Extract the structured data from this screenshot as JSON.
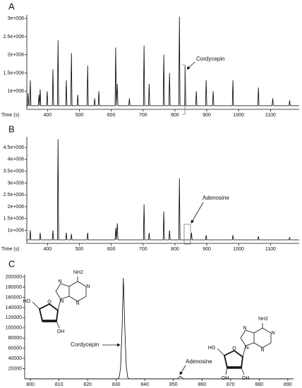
{
  "chart_data": [
    {
      "type": "line",
      "panel_label": "A",
      "xlabel": "Time (s)",
      "annotations": [
        "Cordycepin"
      ],
      "color": "#000000",
      "x": [
        335,
        337,
        339,
        341,
        344,
        346,
        348,
        371,
        373,
        375,
        377,
        379,
        397,
        399,
        401,
        415,
        417,
        419,
        431,
        433,
        435,
        457,
        459,
        461,
        473,
        475,
        477,
        493,
        495,
        497,
        524,
        526,
        528,
        546,
        548,
        550,
        559,
        561,
        563,
        612,
        614,
        616,
        619,
        621,
        655,
        657,
        659,
        701,
        703,
        705,
        717,
        719,
        721,
        763,
        765,
        767,
        781,
        783,
        785,
        812,
        814,
        816,
        830,
        832,
        834,
        865,
        867,
        869,
        896,
        898,
        900,
        918,
        920,
        922,
        980,
        982,
        984,
        1060,
        1062,
        1064,
        1105,
        1107,
        1109,
        1158,
        1160,
        1162,
        1190
      ],
      "values": [
        600000,
        600000,
        950000,
        600000,
        600000,
        1300000,
        600000,
        600000,
        900000,
        600000,
        1050000,
        600000,
        600000,
        1000000,
        600000,
        600000,
        1600000,
        600000,
        600000,
        2400000,
        600000,
        600000,
        1300000,
        600000,
        600000,
        2050000,
        600000,
        600000,
        900000,
        600000,
        600000,
        1700000,
        600000,
        600000,
        800000,
        600000,
        600000,
        1000000,
        600000,
        600000,
        2200000,
        600000,
        1200000,
        600000,
        600000,
        800000,
        600000,
        600000,
        2250000,
        600000,
        600000,
        1200000,
        600000,
        600000,
        2000000,
        600000,
        600000,
        1500000,
        600000,
        600000,
        3050000,
        600000,
        600000,
        1700000,
        600000,
        600000,
        1000000,
        600000,
        600000,
        1300000,
        600000,
        600000,
        1000000,
        600000,
        600000,
        1300000,
        600000,
        600000,
        1100000,
        600000,
        600000,
        800000,
        600000,
        600000,
        750000,
        600000,
        600000
      ],
      "xlim": [
        335,
        1190
      ],
      "xticks": [
        400,
        500,
        600,
        700,
        800,
        900,
        1000,
        1100
      ],
      "ylim": [
        500000,
        3100000
      ],
      "yticks": [
        {
          "value": 1000000,
          "label": "1e+006"
        },
        {
          "value": 1500000,
          "label": "1.5e+006"
        },
        {
          "value": 2000000,
          "label": "2e+006"
        },
        {
          "value": 2500000,
          "label": "2.5e+006"
        },
        {
          "value": 3000000,
          "label": "3e+006"
        }
      ]
    },
    {
      "type": "line",
      "panel_label": "B",
      "xlabel": "Time (s)",
      "annotations": [
        "Adenosine"
      ],
      "color": "#000000",
      "x": [
        335,
        344,
        346,
        348,
        375,
        377,
        379,
        415,
        417,
        419,
        431,
        433,
        435,
        457,
        459,
        461,
        473,
        475,
        477,
        524,
        526,
        528,
        612,
        614,
        616,
        619,
        621,
        701,
        703,
        705,
        717,
        719,
        721,
        763,
        765,
        767,
        781,
        783,
        785,
        812,
        814,
        816,
        850,
        852,
        854,
        896,
        898,
        900,
        980,
        982,
        984,
        1060,
        1062,
        1064,
        1158,
        1160,
        1162,
        1190
      ],
      "values": [
        600000,
        600000,
        1000000,
        600000,
        600000,
        900000,
        600000,
        600000,
        1000000,
        600000,
        600000,
        4850000,
        600000,
        600000,
        900000,
        600000,
        600000,
        850000,
        600000,
        600000,
        900000,
        600000,
        600000,
        1100000,
        600000,
        1300000,
        600000,
        600000,
        2100000,
        600000,
        600000,
        900000,
        600000,
        600000,
        1800000,
        600000,
        600000,
        1000000,
        600000,
        600000,
        3200000,
        600000,
        600000,
        900000,
        600000,
        600000,
        800000,
        600000,
        600000,
        800000,
        600000,
        600000,
        750000,
        600000,
        600000,
        700000,
        600000,
        600000
      ],
      "xlim": [
        335,
        1190
      ],
      "xticks": [
        400,
        500,
        600,
        700,
        800,
        900,
        1000,
        1100
      ],
      "ylim": [
        450000,
        4950000
      ],
      "yticks": [
        {
          "value": 1000000,
          "label": "1e+006"
        },
        {
          "value": 1500000,
          "label": "1.5e+006"
        },
        {
          "value": 2000000,
          "label": "2e+006"
        },
        {
          "value": 2500000,
          "label": "2.5e+006"
        },
        {
          "value": 3000000,
          "label": "3e+006"
        },
        {
          "value": 3500000,
          "label": "3.5e+006"
        },
        {
          "value": 4000000,
          "label": "4e+006"
        },
        {
          "value": 4500000,
          "label": "4.5e+006"
        }
      ]
    },
    {
      "type": "line",
      "panel_label": "C",
      "annotations": [
        "Cordycepin",
        "Adenosine"
      ],
      "color": "#000000",
      "x": [
        798,
        830.5,
        831,
        831.5,
        832,
        832.5,
        833,
        833.5,
        834,
        834.5,
        851.5,
        852,
        852.5,
        853,
        853.5,
        892
      ],
      "values": [
        0,
        0,
        2000,
        20000,
        90000,
        198000,
        100000,
        25000,
        3000,
        0,
        0,
        3000,
        5000,
        2000,
        0,
        0
      ],
      "xlim": [
        798,
        892
      ],
      "xticks": [
        800,
        810,
        820,
        830,
        840,
        850,
        860,
        870,
        880,
        890
      ],
      "ylim": [
        0,
        205000
      ],
      "yticks": [
        20000,
        40000,
        60000,
        80000,
        100000,
        120000,
        140000,
        160000,
        180000,
        200000
      ]
    }
  ],
  "structures": [
    {
      "atoms": [
        "NH2",
        "N",
        "N",
        "N",
        "N",
        "HO",
        "O",
        "OH"
      ]
    },
    {
      "atoms": [
        "NH2",
        "N",
        "N",
        "N",
        "N",
        "HO",
        "O",
        "OH",
        "OH"
      ]
    }
  ]
}
